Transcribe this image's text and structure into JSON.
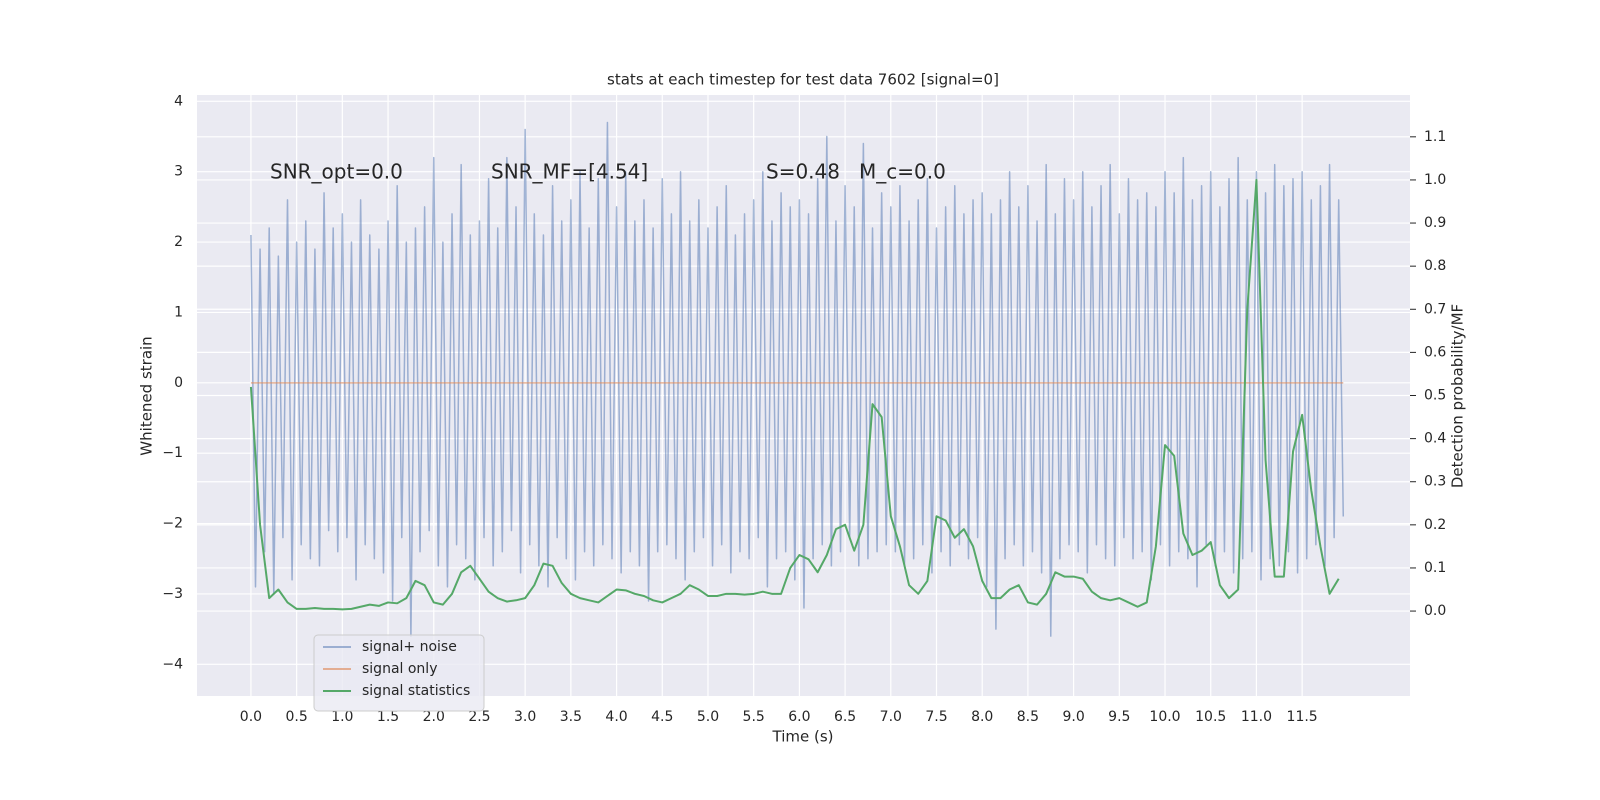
{
  "chart_data": {
    "type": "line",
    "title": "stats at each timestep for test data 7602 [signal=0]",
    "xlabel": "Time (s)",
    "ylabel": "Whitened strain",
    "y2label": "Detection probability/MF",
    "annotations": [
      "SNR_opt=0.0",
      "SNR_MF=[4.54]",
      "S=0.48",
      "M_c=0.0"
    ],
    "xlim": [
      -0.59,
      12.68
    ],
    "ylim": [
      -4.45,
      4.09
    ],
    "y2lim": [
      -0.197,
      1.197
    ],
    "xticks": [
      {
        "value": 0,
        "label": "0.0"
      },
      {
        "value": 0.5,
        "label": "0.5"
      },
      {
        "value": 1,
        "label": "1.0"
      },
      {
        "value": 1.5,
        "label": "1.5"
      },
      {
        "value": 2,
        "label": "2.0"
      },
      {
        "value": 2.5,
        "label": "2.5"
      },
      {
        "value": 3,
        "label": "3.0"
      },
      {
        "value": 3.5,
        "label": "3.5"
      },
      {
        "value": 4,
        "label": "4.0"
      },
      {
        "value": 4.5,
        "label": "4.5"
      },
      {
        "value": 5,
        "label": "5.0"
      },
      {
        "value": 5.5,
        "label": "5.5"
      },
      {
        "value": 6,
        "label": "6.0"
      },
      {
        "value": 6.5,
        "label": "6.5"
      },
      {
        "value": 7,
        "label": "7.0"
      },
      {
        "value": 7.5,
        "label": "7.5"
      },
      {
        "value": 8,
        "label": "8.0"
      },
      {
        "value": 8.5,
        "label": "8.5"
      },
      {
        "value": 9,
        "label": "9.0"
      },
      {
        "value": 9.5,
        "label": "9.5"
      },
      {
        "value": 10,
        "label": "10.0"
      },
      {
        "value": 10.5,
        "label": "10.5"
      },
      {
        "value": 11,
        "label": "11.0"
      },
      {
        "value": 11.5,
        "label": "11.5"
      }
    ],
    "yticks": [
      {
        "value": -4,
        "label": "−4"
      },
      {
        "value": -3,
        "label": "−3"
      },
      {
        "value": -2,
        "label": "−2"
      },
      {
        "value": -1,
        "label": "−1"
      },
      0,
      1,
      2,
      3,
      4
    ],
    "y2ticks": [
      {
        "value": 0,
        "label": "0.0"
      },
      {
        "value": 0.1,
        "label": "0.1"
      },
      {
        "value": 0.2,
        "label": "0.2"
      },
      {
        "value": 0.3,
        "label": "0.3"
      },
      {
        "value": 0.4,
        "label": "0.4"
      },
      {
        "value": 0.5,
        "label": "0.5"
      },
      {
        "value": 0.6,
        "label": "0.6"
      },
      {
        "value": 0.7,
        "label": "0.7"
      },
      {
        "value": 0.8,
        "label": "0.8"
      },
      {
        "value": 0.9,
        "label": "0.9"
      },
      {
        "value": 1,
        "label": "1.0"
      },
      {
        "value": 1.1,
        "label": "1.1"
      }
    ],
    "grid": true,
    "legend": "lower left",
    "series": [
      {
        "name": "signal+ noise",
        "color": "#4c72b0",
        "opacity": 0.5,
        "x": [
          0,
          0.05,
          0.1,
          0.15,
          0.2,
          0.25,
          0.3,
          0.35,
          0.4,
          0.45,
          0.5,
          0.55,
          0.6,
          0.65,
          0.7,
          0.75,
          0.8,
          0.85,
          0.9,
          0.95,
          1,
          1.05,
          1.1,
          1.15,
          1.2,
          1.25,
          1.3,
          1.35,
          1.4,
          1.45,
          1.5,
          1.55,
          1.6,
          1.65,
          1.7,
          1.75,
          1.8,
          1.85,
          1.9,
          1.95,
          2,
          2.05,
          2.1,
          2.15,
          2.2,
          2.25,
          2.3,
          2.35,
          2.4,
          2.45,
          2.5,
          2.55,
          2.6,
          2.65,
          2.7,
          2.75,
          2.8,
          2.85,
          2.9,
          2.95,
          3,
          3.05,
          3.1,
          3.15,
          3.2,
          3.25,
          3.3,
          3.35,
          3.4,
          3.45,
          3.5,
          3.55,
          3.6,
          3.65,
          3.7,
          3.75,
          3.8,
          3.85,
          3.9,
          3.95,
          4,
          4.05,
          4.1,
          4.15,
          4.2,
          4.25,
          4.3,
          4.35,
          4.4,
          4.45,
          4.5,
          4.55,
          4.6,
          4.65,
          4.7,
          4.75,
          4.8,
          4.85,
          4.9,
          4.95,
          5,
          5.05,
          5.1,
          5.15,
          5.2,
          5.25,
          5.3,
          5.35,
          5.4,
          5.45,
          5.5,
          5.55,
          5.6,
          5.65,
          5.7,
          5.75,
          5.8,
          5.85,
          5.9,
          5.95,
          6,
          6.05,
          6.1,
          6.15,
          6.2,
          6.25,
          6.3,
          6.35,
          6.4,
          6.45,
          6.5,
          6.55,
          6.6,
          6.65,
          6.7,
          6.75,
          6.8,
          6.85,
          6.9,
          6.95,
          7,
          7.05,
          7.1,
          7.15,
          7.2,
          7.25,
          7.3,
          7.35,
          7.4,
          7.45,
          7.5,
          7.55,
          7.6,
          7.65,
          7.7,
          7.75,
          7.8,
          7.85,
          7.9,
          7.95,
          8,
          8.05,
          8.1,
          8.15,
          8.2,
          8.25,
          8.3,
          8.35,
          8.4,
          8.45,
          8.5,
          8.55,
          8.6,
          8.65,
          8.7,
          8.75,
          8.8,
          8.85,
          8.9,
          8.95,
          9,
          9.05,
          9.1,
          9.15,
          9.2,
          9.25,
          9.3,
          9.35,
          9.4,
          9.45,
          9.5,
          9.55,
          9.6,
          9.65,
          9.7,
          9.75,
          9.8,
          9.85,
          9.9,
          9.95,
          10,
          10.05,
          10.1,
          10.15,
          10.2,
          10.25,
          10.3,
          10.35,
          10.4,
          10.45,
          10.5,
          10.55,
          10.6,
          10.65,
          10.7,
          10.75,
          10.8,
          10.85,
          10.9,
          10.95,
          11,
          11.05,
          11.1,
          11.15,
          11.2,
          11.25,
          11.3,
          11.35,
          11.4,
          11.45,
          11.5,
          11.55,
          11.6,
          11.65,
          11.7,
          11.75,
          11.8,
          11.85,
          11.9,
          11.95
        ],
        "values": [
          2.1,
          -2.9,
          1.9,
          -2.4,
          2.2,
          -3.0,
          1.8,
          -2.2,
          2.6,
          -2.8,
          2.0,
          -2.3,
          2.3,
          -2.5,
          1.9,
          -2.6,
          2.7,
          -2.1,
          2.2,
          -2.4,
          2.4,
          -2.2,
          2.0,
          -2.8,
          2.6,
          -2.3,
          2.1,
          -2.5,
          1.9,
          -2.7,
          2.3,
          -3.1,
          2.8,
          -2.2,
          2.0,
          -3.6,
          2.2,
          -2.4,
          2.5,
          -2.1,
          3.2,
          -2.6,
          2.0,
          -2.9,
          2.4,
          -2.3,
          3.1,
          -2.5,
          2.1,
          -2.8,
          2.3,
          -2.2,
          2.9,
          -2.6,
          2.2,
          -2.4,
          3.2,
          -2.1,
          2.5,
          -2.7,
          3.6,
          -2.3,
          2.4,
          -2.6,
          2.1,
          -2.9,
          2.8,
          -2.2,
          2.3,
          -2.5,
          2.6,
          -2.8,
          3.0,
          -2.4,
          2.2,
          -2.6,
          2.9,
          -2.3,
          3.7,
          -2.5,
          2.5,
          -2.7,
          3.0,
          -2.4,
          2.3,
          -2.6,
          2.6,
          -3.1,
          2.2,
          -2.4,
          2.9,
          -2.3,
          2.4,
          -2.5,
          3.0,
          -2.8,
          2.3,
          -2.4,
          2.6,
          -2.2,
          2.2,
          -2.6,
          2.5,
          -2.3,
          2.8,
          -2.7,
          2.1,
          -2.4,
          2.4,
          -2.5,
          2.6,
          -2.2,
          3.0,
          -2.9,
          2.3,
          -2.5,
          2.7,
          -2.4,
          2.5,
          -2.8,
          2.6,
          -3.2,
          2.4,
          -2.5,
          2.9,
          -2.3,
          3.5,
          -2.6,
          2.3,
          -2.4,
          2.8,
          -2.2,
          2.5,
          -2.6,
          3.4,
          -2.5,
          2.2,
          -2.4,
          2.7,
          -2.3,
          2.5,
          -2.4,
          2.8,
          -2.6,
          2.3,
          -2.5,
          2.6,
          -2.3,
          2.9,
          -2.7,
          2.2,
          -2.4,
          2.5,
          -2.6,
          2.8,
          -2.3,
          2.4,
          -2.5,
          2.6,
          -2.2,
          2.7,
          -2.9,
          2.4,
          -3.5,
          2.6,
          -2.5,
          3.0,
          -2.3,
          2.5,
          -2.6,
          2.8,
          -2.4,
          2.3,
          -2.7,
          3.1,
          -3.6,
          2.4,
          -2.5,
          2.9,
          -2.3,
          2.6,
          -2.4,
          3.0,
          -2.7,
          2.5,
          -2.3,
          2.8,
          -2.5,
          3.1,
          -2.6,
          2.4,
          -2.2,
          2.9,
          -2.5,
          2.6,
          -2.4,
          2.7,
          -2.8,
          2.5,
          -2.3,
          3.0,
          -2.6,
          2.7,
          -2.4,
          3.2,
          -2.5,
          2.6,
          -2.9,
          2.8,
          -2.3,
          3.0,
          -2.6,
          2.5,
          -2.4,
          2.9,
          -2.7,
          3.2,
          -2.5,
          2.6,
          -2.4,
          3.0,
          -2.8,
          2.7,
          -2.5,
          3.1,
          -2.6,
          2.8,
          -2.4,
          2.9,
          -2.7,
          3.0,
          -2.5,
          2.6,
          -2.3,
          2.8,
          -2.6,
          3.1,
          -2.2,
          2.6,
          -1.9
        ]
      },
      {
        "name": "signal only",
        "color": "#dd8452",
        "opacity": 0.6,
        "x": [
          0,
          11.95
        ],
        "values": [
          0,
          0
        ]
      },
      {
        "name": "signal statistics",
        "color": "#55a868",
        "axis": "y2",
        "x": [
          0,
          0.1,
          0.2,
          0.3,
          0.4,
          0.5,
          0.6,
          0.7,
          0.8,
          0.9,
          1,
          1.1,
          1.2,
          1.3,
          1.4,
          1.5,
          1.6,
          1.7,
          1.8,
          1.9,
          2,
          2.1,
          2.2,
          2.3,
          2.4,
          2.5,
          2.6,
          2.7,
          2.8,
          2.9,
          3,
          3.1,
          3.2,
          3.3,
          3.4,
          3.5,
          3.6,
          3.7,
          3.8,
          3.9,
          4,
          4.1,
          4.2,
          4.3,
          4.4,
          4.5,
          4.6,
          4.7,
          4.8,
          4.9,
          5,
          5.1,
          5.2,
          5.3,
          5.4,
          5.5,
          5.6,
          5.7,
          5.8,
          5.9,
          6,
          6.1,
          6.2,
          6.3,
          6.4,
          6.5,
          6.6,
          6.7,
          6.8,
          6.9,
          7,
          7.1,
          7.2,
          7.3,
          7.4,
          7.5,
          7.6,
          7.7,
          7.8,
          7.9,
          8,
          8.1,
          8.2,
          8.3,
          8.4,
          8.5,
          8.6,
          8.7,
          8.8,
          8.9,
          9,
          9.1,
          9.2,
          9.3,
          9.4,
          9.5,
          9.6,
          9.7,
          9.8,
          9.9,
          10,
          10.1,
          10.2,
          10.3,
          10.4,
          10.5,
          10.6,
          10.7,
          10.8,
          10.9,
          11,
          11.1,
          11.2,
          11.3,
          11.4,
          11.5,
          11.6,
          11.7,
          11.8,
          11.9
        ],
        "values": [
          0.52,
          0.2,
          0.03,
          0.05,
          0.02,
          0.005,
          0.005,
          0.007,
          0.005,
          0.005,
          0.004,
          0.005,
          0.01,
          0.015,
          0.012,
          0.02,
          0.018,
          0.03,
          0.07,
          0.06,
          0.02,
          0.015,
          0.04,
          0.09,
          0.105,
          0.075,
          0.045,
          0.03,
          0.022,
          0.025,
          0.03,
          0.06,
          0.11,
          0.105,
          0.065,
          0.04,
          0.03,
          0.025,
          0.02,
          0.035,
          0.05,
          0.048,
          0.04,
          0.035,
          0.025,
          0.02,
          0.03,
          0.04,
          0.06,
          0.05,
          0.035,
          0.035,
          0.04,
          0.04,
          0.038,
          0.04,
          0.045,
          0.04,
          0.04,
          0.1,
          0.13,
          0.12,
          0.09,
          0.13,
          0.19,
          0.2,
          0.14,
          0.2,
          0.48,
          0.45,
          0.22,
          0.15,
          0.06,
          0.04,
          0.07,
          0.22,
          0.21,
          0.17,
          0.19,
          0.15,
          0.07,
          0.03,
          0.03,
          0.05,
          0.06,
          0.02,
          0.015,
          0.04,
          0.09,
          0.08,
          0.08,
          0.075,
          0.045,
          0.03,
          0.025,
          0.03,
          0.02,
          0.01,
          0.02,
          0.15,
          0.385,
          0.36,
          0.18,
          0.13,
          0.14,
          0.16,
          0.06,
          0.03,
          0.05,
          0.7,
          1.0,
          0.35,
          0.08,
          0.08,
          0.37,
          0.455,
          0.28,
          0.15,
          0.04,
          0.075
        ]
      }
    ]
  }
}
